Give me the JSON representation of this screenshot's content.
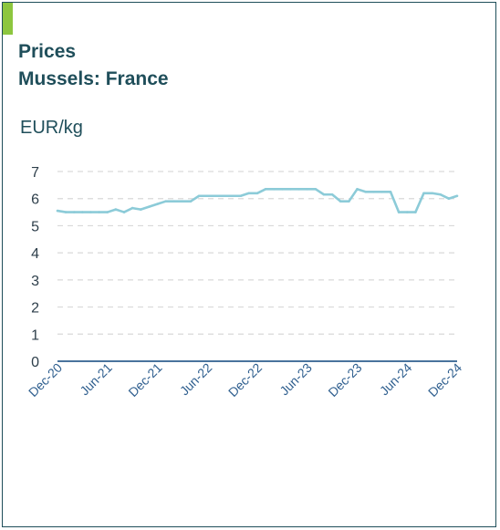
{
  "header": {
    "title_line1": "Prices",
    "title_line2": "Mussels: France",
    "unit": "EUR/kg"
  },
  "colors": {
    "accent": "#8dc63f",
    "title": "#1f4e5a",
    "series": "#8ccbd8",
    "axis": "#2f5f8f",
    "grid": "#d9d9d9"
  },
  "chart_data": {
    "type": "line",
    "title": "Prices",
    "subtitle": "Mussels: France",
    "ylabel": "EUR/kg",
    "xlabel": "",
    "ylim": [
      0,
      7
    ],
    "yticks": [
      0,
      1,
      2,
      3,
      4,
      5,
      6,
      7
    ],
    "grid": true,
    "xtick_labels": [
      "Dec-20",
      "Jun-21",
      "Dec-21",
      "Jun-22",
      "Dec-22",
      "Jun-23",
      "Dec-23",
      "Jun-24",
      "Dec-24"
    ],
    "series": [
      {
        "name": "",
        "x": [
          "Dec-20",
          "Jan-21",
          "Feb-21",
          "Mar-21",
          "Apr-21",
          "May-21",
          "Jun-21",
          "Jul-21",
          "Aug-21",
          "Sep-21",
          "Oct-21",
          "Nov-21",
          "Dec-21",
          "Jan-22",
          "Feb-22",
          "Mar-22",
          "Apr-22",
          "May-22",
          "Jun-22",
          "Jul-22",
          "Aug-22",
          "Sep-22",
          "Oct-22",
          "Nov-22",
          "Dec-22",
          "Jan-23",
          "Feb-23",
          "Mar-23",
          "Apr-23",
          "May-23",
          "Jun-23",
          "Jul-23",
          "Aug-23",
          "Sep-23",
          "Oct-23",
          "Nov-23",
          "Dec-23",
          "Jan-24",
          "Feb-24",
          "Mar-24",
          "Apr-24",
          "May-24",
          "Jun-24",
          "Jul-24",
          "Aug-24",
          "Sep-24",
          "Oct-24",
          "Nov-24",
          "Dec-24"
        ],
        "values": [
          5.55,
          5.5,
          5.5,
          5.5,
          5.5,
          5.5,
          5.5,
          5.6,
          5.5,
          5.65,
          5.6,
          5.7,
          5.8,
          5.9,
          5.9,
          5.9,
          5.9,
          6.1,
          6.1,
          6.1,
          6.1,
          6.1,
          6.1,
          6.2,
          6.2,
          6.35,
          6.35,
          6.35,
          6.35,
          6.35,
          6.35,
          6.35,
          6.15,
          6.15,
          5.9,
          5.9,
          6.35,
          6.25,
          6.25,
          6.25,
          6.25,
          5.5,
          5.5,
          5.5,
          6.2,
          6.2,
          6.15,
          6.0,
          6.1
        ]
      }
    ]
  }
}
